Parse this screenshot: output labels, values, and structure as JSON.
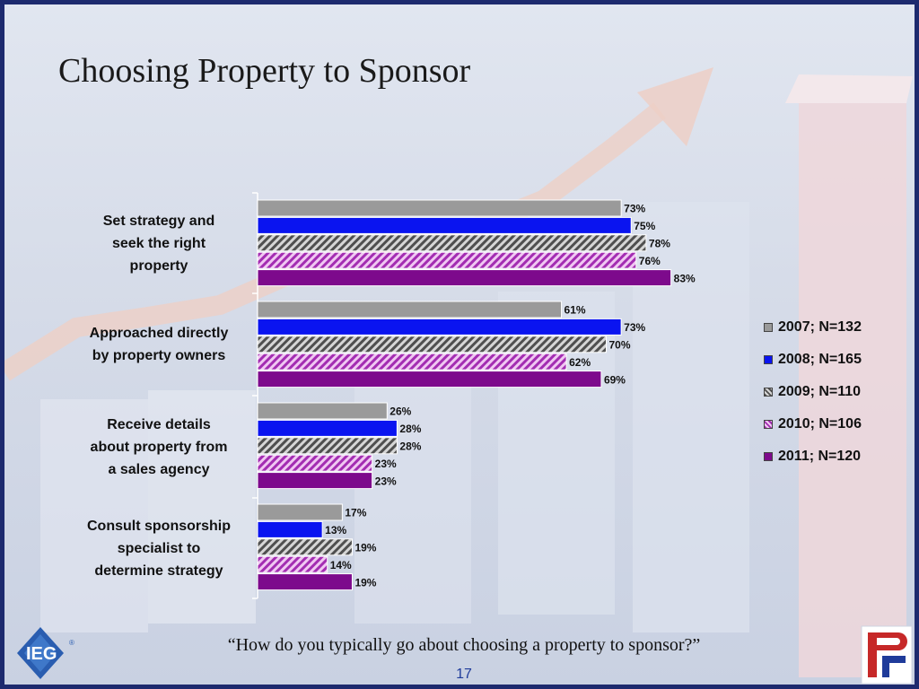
{
  "title": "Choosing Property to Sponsor",
  "question": "“How do you typically go about choosing a property to sponsor?”",
  "page_number": "17",
  "logos": {
    "left": "IEG",
    "left_mark": "®"
  },
  "colors": {
    "2007": "#9a9a9a",
    "2008": "#0a14f0",
    "2009": "#6e6e6e",
    "2010": "#c24fd0",
    "2011": "#7d0a8c"
  },
  "chart_data": {
    "type": "bar",
    "orientation": "horizontal",
    "categories": [
      "Set strategy and seek the right property",
      "Approached directly by property owners",
      "Receive details about property from a sales agency",
      "Consult sponsorship specialist to determine strategy"
    ],
    "category_lines": [
      [
        "Set strategy and",
        "seek the right",
        "property"
      ],
      [
        "Approached directly",
        "by property owners"
      ],
      [
        "Receive details",
        "about property from",
        "a sales agency"
      ],
      [
        "Consult sponsorship",
        "specialist to",
        "determine strategy"
      ]
    ],
    "series": [
      {
        "name": "2007; N=132",
        "values": [
          73,
          61,
          26,
          17
        ],
        "pattern": "solid"
      },
      {
        "name": "2008; N=165",
        "values": [
          75,
          73,
          28,
          13
        ],
        "pattern": "solid"
      },
      {
        "name": "2009; N=110",
        "values": [
          78,
          70,
          28,
          19
        ],
        "pattern": "hatch"
      },
      {
        "name": "2010; N=106",
        "values": [
          76,
          62,
          23,
          14
        ],
        "pattern": "hatch"
      },
      {
        "name": "2011; N=120",
        "values": [
          83,
          69,
          23,
          19
        ],
        "pattern": "solid"
      }
    ],
    "value_labels": [
      [
        "73%",
        "61%",
        "26%",
        "17%"
      ],
      [
        "75%",
        "73%",
        "28%",
        "13%"
      ],
      [
        "78%",
        "70%",
        "28%",
        "19%"
      ],
      [
        "76%",
        "62%",
        "23%",
        "14%"
      ],
      [
        "83%",
        "69%",
        "23%",
        "19%"
      ]
    ],
    "unit": "%",
    "xlim": [
      0,
      100
    ],
    "grid": false,
    "legend_position": "right"
  }
}
